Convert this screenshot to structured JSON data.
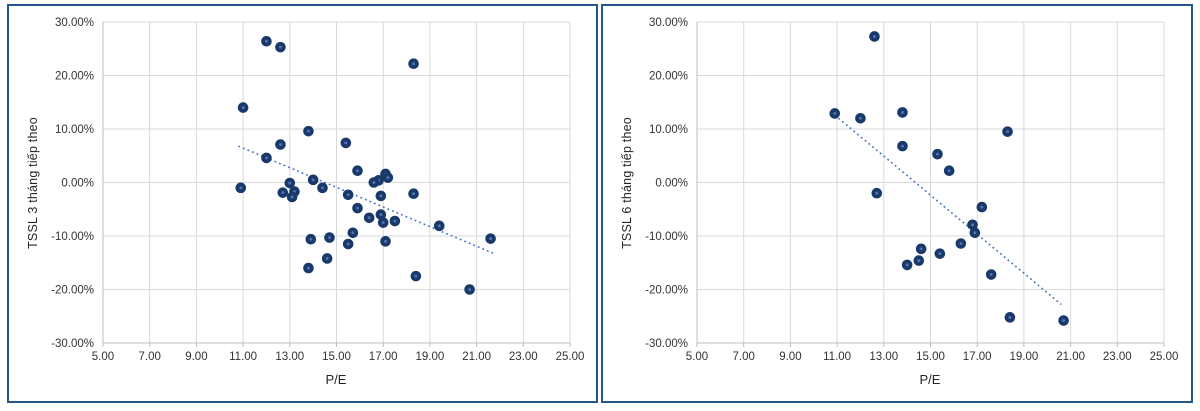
{
  "colors": {
    "frame_border": "#24578a",
    "gridline": "#d9d9d9",
    "axis_line": "#bfbfbf",
    "tick_text": "#333333",
    "marker": "#19396b",
    "marker_center": "#4e74ad",
    "trendline": "#4472c4"
  },
  "chart_data": [
    {
      "type": "scatter",
      "title": "",
      "xlabel": "P/E",
      "ylabel": "TSSL 3 tháng tiếp theo",
      "xlim": [
        5.0,
        25.0
      ],
      "ylim_percent": [
        -30,
        30
      ],
      "grid": true,
      "legend": false,
      "x_ticks": [
        5,
        7,
        9,
        11,
        13,
        15,
        17,
        19,
        21,
        23,
        25
      ],
      "x_tick_labels": [
        "5.00",
        "7.00",
        "9.00",
        "11.00",
        "13.00",
        "15.00",
        "17.00",
        "19.00",
        "21.00",
        "23.00",
        "25.00"
      ],
      "y_ticks_percent": [
        30,
        20,
        10,
        0,
        -10,
        -20,
        -30
      ],
      "y_tick_labels": [
        "30.00%",
        "20.00%",
        "10.00%",
        "0.00%",
        "-10.00%",
        "-20.00%",
        "-30.00%"
      ],
      "points_pe_vs_return_pct": [
        [
          12.0,
          26.4
        ],
        [
          12.6,
          25.3
        ],
        [
          18.3,
          22.2
        ],
        [
          11.0,
          14.0
        ],
        [
          13.8,
          9.6
        ],
        [
          12.6,
          7.1
        ],
        [
          15.4,
          7.4
        ],
        [
          12.0,
          4.6
        ],
        [
          15.9,
          2.2
        ],
        [
          17.1,
          1.6
        ],
        [
          17.2,
          0.9
        ],
        [
          16.8,
          0.4
        ],
        [
          16.6,
          0.0
        ],
        [
          14.0,
          0.5
        ],
        [
          13.0,
          -0.1
        ],
        [
          10.9,
          -1.0
        ],
        [
          14.4,
          -1.0
        ],
        [
          12.7,
          -1.9
        ],
        [
          13.2,
          -1.7
        ],
        [
          13.1,
          -2.7
        ],
        [
          15.5,
          -2.3
        ],
        [
          16.9,
          -2.5
        ],
        [
          18.3,
          -2.1
        ],
        [
          15.9,
          -4.8
        ],
        [
          16.4,
          -6.6
        ],
        [
          16.9,
          -6.0
        ],
        [
          17.0,
          -7.5
        ],
        [
          17.5,
          -7.2
        ],
        [
          19.4,
          -8.1
        ],
        [
          15.7,
          -9.4
        ],
        [
          13.9,
          -10.6
        ],
        [
          14.7,
          -10.3
        ],
        [
          15.5,
          -11.5
        ],
        [
          17.1,
          -11.0
        ],
        [
          21.6,
          -10.5
        ],
        [
          14.6,
          -14.2
        ],
        [
          13.8,
          -16.0
        ],
        [
          18.4,
          -17.5
        ],
        [
          20.7,
          -20.0
        ]
      ],
      "trendline": {
        "style": "dotted",
        "x_start": 10.8,
        "y_start_pct": 6.8,
        "x_end": 21.7,
        "y_end_pct": -13.2
      }
    },
    {
      "type": "scatter",
      "title": "",
      "xlabel": "P/E",
      "ylabel": "TSSL 6 tháng tiếp theo",
      "xlim": [
        5.0,
        25.0
      ],
      "ylim_percent": [
        -30,
        30
      ],
      "grid": true,
      "legend": false,
      "x_ticks": [
        5,
        7,
        9,
        11,
        13,
        15,
        17,
        19,
        21,
        23,
        25
      ],
      "x_tick_labels": [
        "5.00",
        "7.00",
        "9.00",
        "11.00",
        "13.00",
        "15.00",
        "17.00",
        "19.00",
        "21.00",
        "23.00",
        "25.00"
      ],
      "y_ticks_percent": [
        30,
        20,
        10,
        0,
        -10,
        -20,
        -30
      ],
      "y_tick_labels": [
        "30.00%",
        "20.00%",
        "10.00%",
        "0.00%",
        "-10.00%",
        "-20.00%",
        "-30.00%"
      ],
      "points_pe_vs_return_pct": [
        [
          12.6,
          27.3
        ],
        [
          10.9,
          12.9
        ],
        [
          12.0,
          12.0
        ],
        [
          13.8,
          13.1
        ],
        [
          18.3,
          9.5
        ],
        [
          13.8,
          6.8
        ],
        [
          15.3,
          5.3
        ],
        [
          15.8,
          2.2
        ],
        [
          12.7,
          -2.0
        ],
        [
          17.2,
          -4.6
        ],
        [
          16.8,
          -7.9
        ],
        [
          16.9,
          -9.4
        ],
        [
          16.3,
          -11.4
        ],
        [
          14.6,
          -12.4
        ],
        [
          15.4,
          -13.3
        ],
        [
          14.5,
          -14.6
        ],
        [
          14.0,
          -15.4
        ],
        [
          17.6,
          -17.2
        ],
        [
          18.4,
          -25.2
        ],
        [
          20.7,
          -25.8
        ]
      ],
      "trendline": {
        "style": "dotted",
        "x_start": 10.9,
        "y_start_pct": 12.6,
        "x_end": 20.6,
        "y_end_pct": -22.8
      }
    }
  ]
}
